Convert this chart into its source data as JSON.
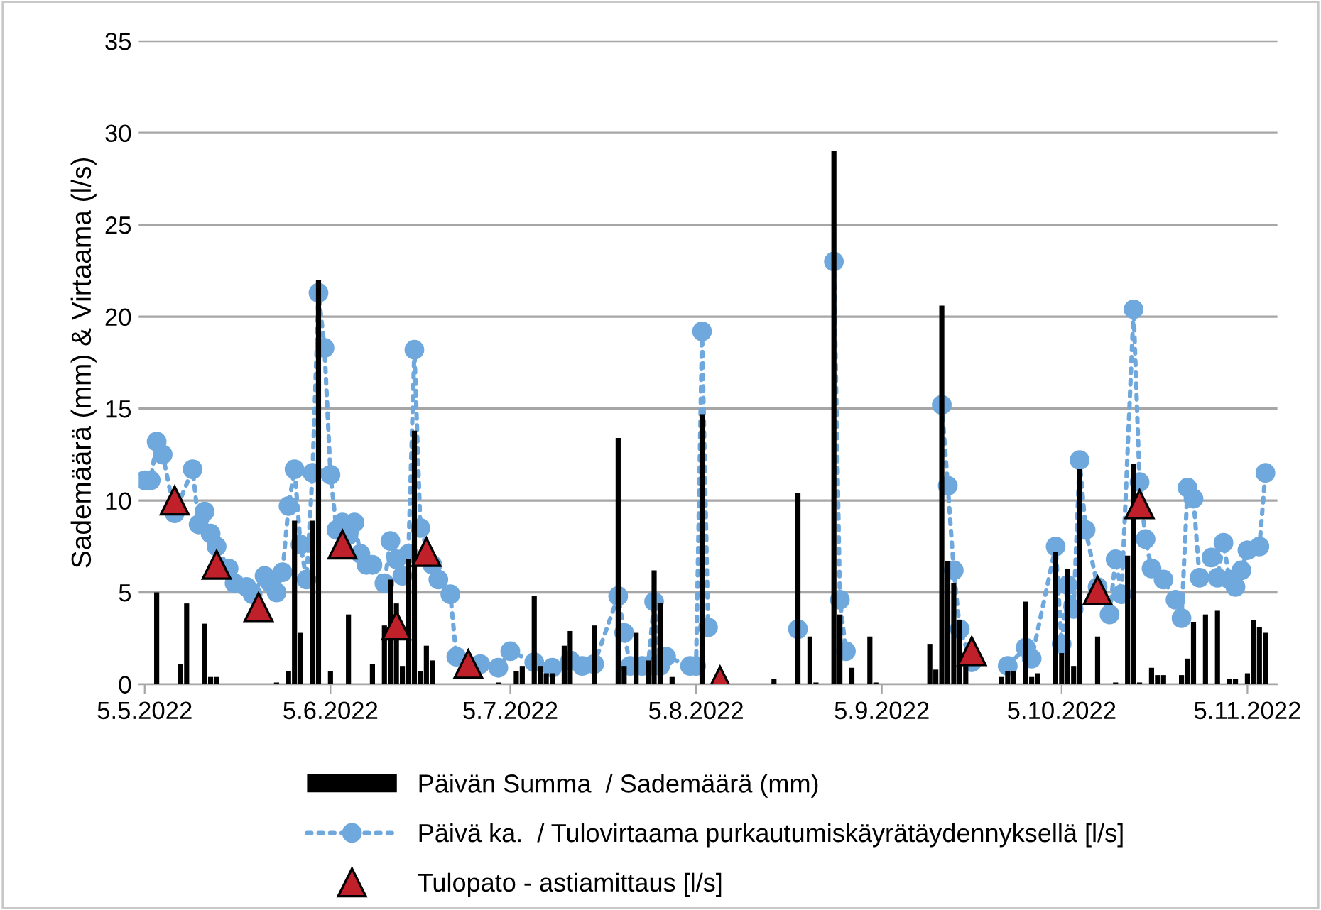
{
  "chart_data": {
    "type": "bar",
    "ylabel": "Sademäärä (mm) & Virtaama (l/s)",
    "xlim": [
      "2022-05-04",
      "2022-11-10"
    ],
    "xticks": [
      {
        "value": "2022-05-05",
        "label": "5.5.2022"
      },
      {
        "value": "2022-06-05",
        "label": "5.6.2022"
      },
      {
        "value": "2022-07-05",
        "label": "5.7.2022"
      },
      {
        "value": "2022-08-05",
        "label": "5.8.2022"
      },
      {
        "value": "2022-09-05",
        "label": "5.9.2022"
      },
      {
        "value": "2022-10-05",
        "label": "5.10.2022"
      },
      {
        "value": "2022-11-05",
        "label": "5.11.2022"
      }
    ],
    "ylim": [
      0,
      35
    ],
    "yticks": [
      0,
      5,
      10,
      15,
      20,
      25,
      30,
      35
    ],
    "grid": "y",
    "legend": "bottom",
    "series": [
      {
        "name": "Päivän Summa  / Sademäärä (mm)",
        "color": "#000000",
        "x": [
          "2022-05-07",
          "2022-05-11",
          "2022-05-12",
          "2022-05-15",
          "2022-05-16",
          "2022-05-17",
          "2022-05-27",
          "2022-05-29",
          "2022-05-30",
          "2022-05-31",
          "2022-06-02",
          "2022-06-03",
          "2022-06-05",
          "2022-06-08",
          "2022-06-12",
          "2022-06-14",
          "2022-06-15",
          "2022-06-16",
          "2022-06-17",
          "2022-06-18",
          "2022-06-19",
          "2022-06-20",
          "2022-06-21",
          "2022-06-22",
          "2022-07-03",
          "2022-07-06",
          "2022-07-07",
          "2022-07-09",
          "2022-07-10",
          "2022-07-11",
          "2022-07-12",
          "2022-07-14",
          "2022-07-15",
          "2022-07-19",
          "2022-07-23",
          "2022-07-24",
          "2022-07-26",
          "2022-07-28",
          "2022-07-29",
          "2022-07-30",
          "2022-08-01",
          "2022-08-06",
          "2022-08-18",
          "2022-08-22",
          "2022-08-24",
          "2022-08-25",
          "2022-08-28",
          "2022-08-29",
          "2022-08-31",
          "2022-09-03",
          "2022-09-04",
          "2022-09-13",
          "2022-09-14",
          "2022-09-15",
          "2022-09-16",
          "2022-09-17",
          "2022-09-18",
          "2022-09-19",
          "2022-09-25",
          "2022-09-26",
          "2022-09-27",
          "2022-09-29",
          "2022-09-30",
          "2022-10-01",
          "2022-10-04",
          "2022-10-05",
          "2022-10-06",
          "2022-10-07",
          "2022-10-08",
          "2022-10-11",
          "2022-10-14",
          "2022-10-16",
          "2022-10-17",
          "2022-10-18",
          "2022-10-20",
          "2022-10-21",
          "2022-10-22",
          "2022-10-25",
          "2022-10-26",
          "2022-10-27",
          "2022-10-29",
          "2022-10-31",
          "2022-11-02",
          "2022-11-03",
          "2022-11-05",
          "2022-11-06",
          "2022-11-07",
          "2022-11-08"
        ],
        "values": [
          5.0,
          1.1,
          4.4,
          3.3,
          0.4,
          0.4,
          0.1,
          0.7,
          8.9,
          2.8,
          8.9,
          22.0,
          0.7,
          3.8,
          1.1,
          3.2,
          5.7,
          4.4,
          1.0,
          6.8,
          13.8,
          0.7,
          2.1,
          1.3,
          0.1,
          0.7,
          1.0,
          4.8,
          1.0,
          0.6,
          0.6,
          2.1,
          2.9,
          3.2,
          13.4,
          1.0,
          2.8,
          1.3,
          6.2,
          4.4,
          0.4,
          14.7,
          0.3,
          10.4,
          2.6,
          0.1,
          29.0,
          3.8,
          0.9,
          2.6,
          0.1,
          2.2,
          0.8,
          20.6,
          6.7,
          5.5,
          3.5,
          1.0,
          0.4,
          0.7,
          0.7,
          4.5,
          0.4,
          0.6,
          7.2,
          1.7,
          6.3,
          1.0,
          11.7,
          2.6,
          0.1,
          7.0,
          12.0,
          0.1,
          0.9,
          0.5,
          0.5,
          0.5,
          1.4,
          3.4,
          3.8,
          4.0,
          0.3,
          0.3,
          0.6,
          3.5,
          3.1,
          2.8
        ]
      },
      {
        "name": "Päivä ka.  / Tulovirtaama purkautumiskäyrätäydennyksellä [l/s]",
        "type": "line",
        "color": "#6fa8dc",
        "marker": "circle",
        "line_style": "dotted",
        "x": [
          "2022-05-05",
          "2022-05-06",
          "2022-05-07",
          "2022-05-08",
          "2022-05-10",
          "2022-05-13",
          "2022-05-14",
          "2022-05-15",
          "2022-05-16",
          "2022-05-17",
          "2022-05-19",
          "2022-05-20",
          "2022-05-22",
          "2022-05-23",
          "2022-05-25",
          "2022-05-26",
          "2022-05-27",
          "2022-05-28",
          "2022-05-29",
          "2022-05-30",
          "2022-05-31",
          "2022-06-01",
          "2022-06-02",
          "2022-06-03",
          "2022-06-04",
          "2022-06-05",
          "2022-06-06",
          "2022-06-07",
          "2022-06-08",
          "2022-06-09",
          "2022-06-10",
          "2022-06-11",
          "2022-06-12",
          "2022-06-14",
          "2022-06-15",
          "2022-06-16",
          "2022-06-17",
          "2022-06-18",
          "2022-06-19",
          "2022-06-20",
          "2022-06-22",
          "2022-06-23",
          "2022-06-25",
          "2022-06-26",
          "2022-06-30",
          "2022-07-03",
          "2022-07-05",
          "2022-07-09",
          "2022-07-12",
          "2022-07-15",
          "2022-07-17",
          "2022-07-19",
          "2022-07-23",
          "2022-07-24",
          "2022-07-25",
          "2022-07-27",
          "2022-07-28",
          "2022-07-29",
          "2022-07-30",
          "2022-07-31",
          "2022-08-04",
          "2022-08-05",
          "2022-08-06",
          "2022-08-07",
          "2022-08-15",
          "2022-08-22",
          "2022-08-25",
          "2022-08-28",
          "2022-08-29",
          "2022-08-30",
          "2022-09-05",
          "2022-09-15",
          "2022-09-16",
          "2022-09-17",
          "2022-09-18",
          "2022-09-20",
          "2022-09-22",
          "2022-09-26",
          "2022-09-29",
          "2022-09-30",
          "2022-10-04",
          "2022-10-05",
          "2022-10-06",
          "2022-10-07",
          "2022-10-08",
          "2022-10-09",
          "2022-10-11",
          "2022-10-13",
          "2022-10-14",
          "2022-10-15",
          "2022-10-17",
          "2022-10-18",
          "2022-10-19",
          "2022-10-20",
          "2022-10-22",
          "2022-10-24",
          "2022-10-25",
          "2022-10-26",
          "2022-10-27",
          "2022-10-28",
          "2022-10-30",
          "2022-10-31",
          "2022-11-01",
          "2022-11-02",
          "2022-11-03",
          "2022-11-04",
          "2022-11-05",
          "2022-11-07",
          "2022-11-08"
        ],
        "values": [
          11.1,
          11.1,
          13.2,
          12.5,
          9.3,
          11.7,
          8.7,
          9.4,
          8.2,
          7.5,
          6.3,
          5.5,
          5.3,
          4.9,
          5.9,
          5.5,
          5.0,
          6.1,
          9.7,
          11.7,
          7.6,
          5.7,
          11.5,
          21.3,
          18.3,
          11.4,
          8.4,
          8.8,
          8.1,
          8.8,
          7.1,
          6.5,
          6.5,
          5.5,
          7.8,
          6.8,
          5.9,
          7.1,
          18.2,
          8.5,
          6.5,
          5.7,
          4.9,
          1.5,
          1.1,
          0.9,
          1.8,
          1.2,
          0.9,
          1.3,
          1.0,
          1.1,
          4.8,
          2.8,
          1.0,
          1.0,
          1.0,
          4.5,
          1.0,
          1.5,
          1.0,
          1.0,
          19.2,
          3.1,
          null,
          3.0,
          null,
          23.0,
          4.6,
          1.8,
          null,
          15.2,
          10.8,
          6.2,
          3.0,
          1.2,
          null,
          1.0,
          2.0,
          1.4,
          7.5,
          2.2,
          5.4,
          4.1,
          12.2,
          8.4,
          5.3,
          3.8,
          6.8,
          4.9,
          20.4,
          11.0,
          7.9,
          6.3,
          5.7,
          4.6,
          3.6,
          10.7,
          10.1,
          5.8,
          6.9,
          5.8,
          7.7,
          5.7,
          5.3,
          6.2,
          7.3,
          7.5,
          11.5
        ]
      },
      {
        "name": "Tulopato - astiamittaus [l/s]",
        "type": "scatter",
        "color": "#c0202a",
        "marker": "triangle",
        "x": [
          "2022-05-10",
          "2022-05-17",
          "2022-05-24",
          "2022-06-07",
          "2022-06-16",
          "2022-06-21",
          "2022-06-28",
          "2022-08-09",
          "2022-09-20",
          "2022-10-11",
          "2022-10-18"
        ],
        "values": [
          10.0,
          6.5,
          4.2,
          7.6,
          3.2,
          7.2,
          1.1,
          0.2,
          1.8,
          5.1,
          9.8
        ]
      }
    ]
  }
}
